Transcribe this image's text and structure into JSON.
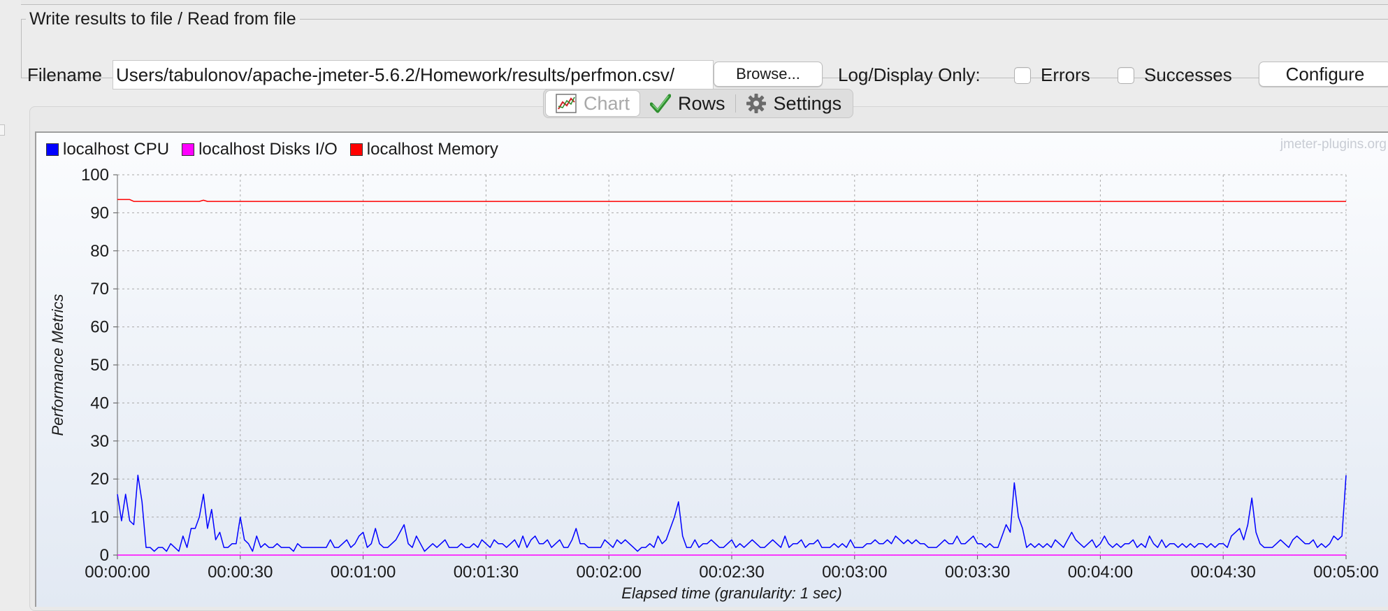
{
  "panel": {
    "legend": "Write results to file / Read from file",
    "filename_label": "Filename",
    "filename_value": "/Users/tabulonov/apache-jmeter-5.6.2/Homework/results/perfmon.csv",
    "browse_label": "Browse...",
    "log_display_label": "Log/Display Only:",
    "errors_label": "Errors",
    "successes_label": "Successes",
    "configure_label": "Configure"
  },
  "tabs": [
    {
      "label": "Chart",
      "icon": "chart-icon",
      "active": true
    },
    {
      "label": "Rows",
      "icon": "checkmark-icon",
      "active": false
    },
    {
      "label": "Settings",
      "icon": "gear-icon",
      "active": false
    }
  ],
  "watermark": "jmeter-plugins.org",
  "chart_data": {
    "type": "line",
    "ylabel": "Performance Metrics",
    "xlabel": "Elapsed time (granularity: 1 sec)",
    "ylim": [
      0,
      100
    ],
    "yticks": [
      "0",
      "10",
      "20",
      "30",
      "40",
      "50",
      "60",
      "70",
      "80",
      "90",
      "100"
    ],
    "xlim_seconds": [
      0,
      300
    ],
    "xticks": [
      "00:00:00",
      "00:00:30",
      "00:01:00",
      "00:01:30",
      "00:02:00",
      "00:02:30",
      "00:03:00",
      "00:03:30",
      "00:04:00",
      "00:04:30",
      "00:05:00"
    ],
    "grid": true,
    "legend_position": "top-left",
    "series": [
      {
        "name": "localhost CPU",
        "color": "#0000ff",
        "points": [
          [
            0,
            16
          ],
          [
            1,
            9
          ],
          [
            2,
            16
          ],
          [
            3,
            9
          ],
          [
            4,
            8
          ],
          [
            5,
            21
          ],
          [
            6,
            14
          ],
          [
            7,
            2
          ],
          [
            8,
            2
          ],
          [
            9,
            1
          ],
          [
            10,
            2
          ],
          [
            11,
            2
          ],
          [
            12,
            1
          ],
          [
            13,
            3
          ],
          [
            14,
            2
          ],
          [
            15,
            1
          ],
          [
            16,
            5
          ],
          [
            17,
            2
          ],
          [
            18,
            7
          ],
          [
            19,
            7
          ],
          [
            20,
            10
          ],
          [
            21,
            16
          ],
          [
            22,
            7
          ],
          [
            23,
            12
          ],
          [
            24,
            4
          ],
          [
            25,
            6
          ],
          [
            26,
            2
          ],
          [
            27,
            2
          ],
          [
            28,
            3
          ],
          [
            29,
            3
          ],
          [
            30,
            10
          ],
          [
            31,
            4
          ],
          [
            32,
            3
          ],
          [
            33,
            1
          ],
          [
            34,
            5
          ],
          [
            35,
            2
          ],
          [
            36,
            3
          ],
          [
            37,
            2
          ],
          [
            38,
            2
          ],
          [
            39,
            3
          ],
          [
            40,
            2
          ],
          [
            41,
            2
          ],
          [
            42,
            2
          ],
          [
            43,
            1
          ],
          [
            44,
            3
          ],
          [
            45,
            2
          ],
          [
            46,
            2
          ],
          [
            47,
            2
          ],
          [
            48,
            2
          ],
          [
            49,
            2
          ],
          [
            50,
            2
          ],
          [
            51,
            2
          ],
          [
            52,
            4
          ],
          [
            53,
            2
          ],
          [
            54,
            2
          ],
          [
            55,
            3
          ],
          [
            56,
            4
          ],
          [
            57,
            2
          ],
          [
            58,
            3
          ],
          [
            59,
            5
          ],
          [
            60,
            6
          ],
          [
            61,
            2
          ],
          [
            62,
            3
          ],
          [
            63,
            7
          ],
          [
            64,
            3
          ],
          [
            65,
            2
          ],
          [
            66,
            2
          ],
          [
            67,
            3
          ],
          [
            68,
            4
          ],
          [
            69,
            6
          ],
          [
            70,
            8
          ],
          [
            71,
            3
          ],
          [
            72,
            2
          ],
          [
            73,
            5
          ],
          [
            74,
            3
          ],
          [
            75,
            1
          ],
          [
            76,
            2
          ],
          [
            77,
            3
          ],
          [
            78,
            2
          ],
          [
            79,
            3
          ],
          [
            80,
            4
          ],
          [
            81,
            2
          ],
          [
            82,
            2
          ],
          [
            83,
            2
          ],
          [
            84,
            3
          ],
          [
            85,
            2
          ],
          [
            86,
            2
          ],
          [
            87,
            3
          ],
          [
            88,
            2
          ],
          [
            89,
            4
          ],
          [
            90,
            3
          ],
          [
            91,
            2
          ],
          [
            92,
            4
          ],
          [
            93,
            3
          ],
          [
            94,
            3
          ],
          [
            95,
            2
          ],
          [
            96,
            3
          ],
          [
            97,
            4
          ],
          [
            98,
            2
          ],
          [
            99,
            5
          ],
          [
            100,
            2
          ],
          [
            101,
            4
          ],
          [
            102,
            5
          ],
          [
            103,
            3
          ],
          [
            104,
            3
          ],
          [
            105,
            4
          ],
          [
            106,
            2
          ],
          [
            107,
            3
          ],
          [
            108,
            4
          ],
          [
            109,
            2
          ],
          [
            110,
            2
          ],
          [
            111,
            4
          ],
          [
            112,
            7
          ],
          [
            113,
            3
          ],
          [
            114,
            3
          ],
          [
            115,
            2
          ],
          [
            116,
            2
          ],
          [
            117,
            2
          ],
          [
            118,
            2
          ],
          [
            119,
            4
          ],
          [
            120,
            3
          ],
          [
            121,
            2
          ],
          [
            122,
            4
          ],
          [
            123,
            3
          ],
          [
            124,
            4
          ],
          [
            125,
            3
          ],
          [
            126,
            2
          ],
          [
            127,
            1
          ],
          [
            128,
            2
          ],
          [
            129,
            2
          ],
          [
            130,
            3
          ],
          [
            131,
            2
          ],
          [
            132,
            5
          ],
          [
            133,
            3
          ],
          [
            134,
            4
          ],
          [
            135,
            7
          ],
          [
            136,
            10
          ],
          [
            137,
            14
          ],
          [
            138,
            5
          ],
          [
            139,
            2
          ],
          [
            140,
            2
          ],
          [
            141,
            4
          ],
          [
            142,
            2
          ],
          [
            143,
            3
          ],
          [
            144,
            3
          ],
          [
            145,
            4
          ],
          [
            146,
            3
          ],
          [
            147,
            2
          ],
          [
            148,
            2
          ],
          [
            149,
            3
          ],
          [
            150,
            4
          ],
          [
            151,
            2
          ],
          [
            152,
            3
          ],
          [
            153,
            2
          ],
          [
            154,
            3
          ],
          [
            155,
            4
          ],
          [
            156,
            3
          ],
          [
            157,
            2
          ],
          [
            158,
            2
          ],
          [
            159,
            3
          ],
          [
            160,
            4
          ],
          [
            161,
            3
          ],
          [
            162,
            2
          ],
          [
            163,
            5
          ],
          [
            164,
            2
          ],
          [
            165,
            3
          ],
          [
            166,
            3
          ],
          [
            167,
            4
          ],
          [
            168,
            2
          ],
          [
            169,
            3
          ],
          [
            170,
            3
          ],
          [
            171,
            4
          ],
          [
            172,
            2
          ],
          [
            173,
            2
          ],
          [
            174,
            2
          ],
          [
            175,
            3
          ],
          [
            176,
            2
          ],
          [
            177,
            3
          ],
          [
            178,
            2
          ],
          [
            179,
            4
          ],
          [
            180,
            2
          ],
          [
            181,
            2
          ],
          [
            182,
            2
          ],
          [
            183,
            3
          ],
          [
            184,
            3
          ],
          [
            185,
            4
          ],
          [
            186,
            3
          ],
          [
            187,
            3
          ],
          [
            188,
            4
          ],
          [
            189,
            3
          ],
          [
            190,
            5
          ],
          [
            191,
            4
          ],
          [
            192,
            3
          ],
          [
            193,
            4
          ],
          [
            194,
            3
          ],
          [
            195,
            4
          ],
          [
            196,
            3
          ],
          [
            197,
            3
          ],
          [
            198,
            2
          ],
          [
            199,
            2
          ],
          [
            200,
            2
          ],
          [
            201,
            3
          ],
          [
            202,
            4
          ],
          [
            203,
            3
          ],
          [
            204,
            3
          ],
          [
            205,
            5
          ],
          [
            206,
            3
          ],
          [
            207,
            3
          ],
          [
            208,
            4
          ],
          [
            209,
            5
          ],
          [
            210,
            3
          ],
          [
            211,
            3
          ],
          [
            212,
            2
          ],
          [
            213,
            3
          ],
          [
            214,
            2
          ],
          [
            215,
            2
          ],
          [
            216,
            5
          ],
          [
            217,
            8
          ],
          [
            218,
            6
          ],
          [
            219,
            19
          ],
          [
            220,
            10
          ],
          [
            221,
            7
          ],
          [
            222,
            2
          ],
          [
            223,
            3
          ],
          [
            224,
            2
          ],
          [
            225,
            3
          ],
          [
            226,
            2
          ],
          [
            227,
            3
          ],
          [
            228,
            2
          ],
          [
            229,
            4
          ],
          [
            230,
            3
          ],
          [
            231,
            2
          ],
          [
            232,
            4
          ],
          [
            233,
            6
          ],
          [
            234,
            4
          ],
          [
            235,
            3
          ],
          [
            236,
            2
          ],
          [
            237,
            3
          ],
          [
            238,
            4
          ],
          [
            239,
            2
          ],
          [
            240,
            3
          ],
          [
            241,
            5
          ],
          [
            242,
            3
          ],
          [
            243,
            2
          ],
          [
            244,
            3
          ],
          [
            245,
            2
          ],
          [
            246,
            3
          ],
          [
            247,
            3
          ],
          [
            248,
            4
          ],
          [
            249,
            2
          ],
          [
            250,
            3
          ],
          [
            251,
            2
          ],
          [
            252,
            5
          ],
          [
            253,
            3
          ],
          [
            254,
            2
          ],
          [
            255,
            4
          ],
          [
            256,
            2
          ],
          [
            257,
            3
          ],
          [
            258,
            3
          ],
          [
            259,
            2
          ],
          [
            260,
            3
          ],
          [
            261,
            2
          ],
          [
            262,
            3
          ],
          [
            263,
            2
          ],
          [
            264,
            3
          ],
          [
            265,
            3
          ],
          [
            266,
            2
          ],
          [
            267,
            3
          ],
          [
            268,
            2
          ],
          [
            269,
            3
          ],
          [
            270,
            3
          ],
          [
            271,
            2
          ],
          [
            272,
            5
          ],
          [
            273,
            6
          ],
          [
            274,
            7
          ],
          [
            275,
            4
          ],
          [
            276,
            8
          ],
          [
            277,
            15
          ],
          [
            278,
            6
          ],
          [
            279,
            3
          ],
          [
            280,
            2
          ],
          [
            281,
            2
          ],
          [
            282,
            2
          ],
          [
            283,
            3
          ],
          [
            284,
            4
          ],
          [
            285,
            3
          ],
          [
            286,
            2
          ],
          [
            287,
            4
          ],
          [
            288,
            5
          ],
          [
            289,
            4
          ],
          [
            290,
            3
          ],
          [
            291,
            3
          ],
          [
            292,
            4
          ],
          [
            293,
            2
          ],
          [
            294,
            3
          ],
          [
            295,
            2
          ],
          [
            296,
            3
          ],
          [
            297,
            5
          ],
          [
            298,
            4
          ],
          [
            299,
            5
          ],
          [
            300,
            21
          ]
        ]
      },
      {
        "name": "localhost Disks I/O",
        "color": "#ff00ff",
        "points": [
          [
            0,
            0
          ],
          [
            300,
            0
          ]
        ]
      },
      {
        "name": "localhost Memory",
        "color": "#ff0000",
        "points": [
          [
            0,
            93.5
          ],
          [
            3,
            93.5
          ],
          [
            4,
            93.0
          ],
          [
            20,
            93.0
          ],
          [
            21,
            93.3
          ],
          [
            22,
            93.0
          ],
          [
            300,
            93.0
          ]
        ]
      }
    ]
  }
}
